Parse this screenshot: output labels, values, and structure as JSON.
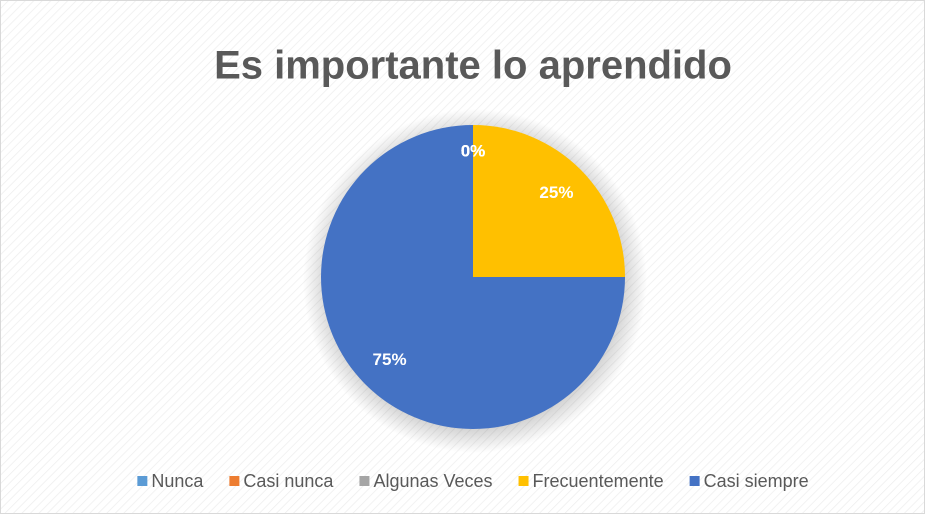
{
  "chart_data": {
    "type": "pie",
    "title": "Es importante lo aprendido",
    "categories": [
      "Nunca",
      "Casi nunca",
      "Algunas Veces",
      "Frecuentemente",
      "Casi siempre"
    ],
    "values": [
      0,
      0,
      0,
      25,
      75
    ],
    "value_labels": [
      "0%",
      "0%",
      "0%",
      "25%",
      "75%"
    ],
    "colors": [
      "#5b9bd5",
      "#ed7d31",
      "#a5a5a5",
      "#ffc000",
      "#4472c4"
    ],
    "legend": "bottom"
  }
}
